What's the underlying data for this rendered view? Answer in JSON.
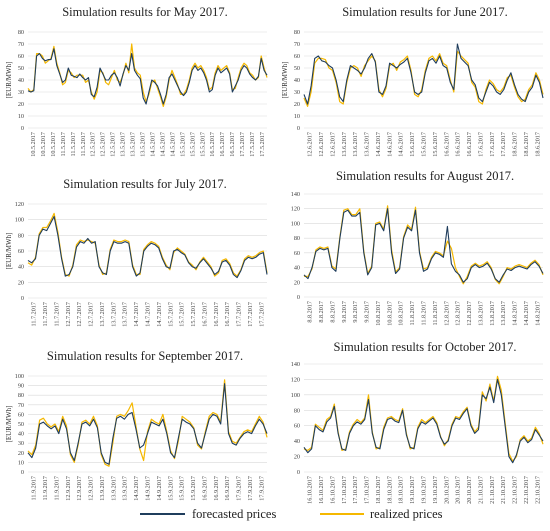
{
  "legend": {
    "forecasted_label": "forecasted prices",
    "realized_label": "realized prices"
  },
  "colors": {
    "forecasted": "#1f3d5c",
    "realized": "#f5b800"
  },
  "chart_data": [
    {
      "type": "line",
      "title": "Simulation results for May 2017.",
      "ylabel": "[EUR/MWh]",
      "ylim": [
        0,
        80
      ],
      "yticks": [
        0,
        10,
        20,
        30,
        40,
        50,
        60,
        70,
        80
      ],
      "xticks": [
        "10.5.2017",
        "10.5.2017",
        "10.5.2017",
        "11.5.2017",
        "11.5.2017",
        "11.5.2017",
        "12.5.2017",
        "12.5.2017",
        "12.5.2017",
        "13.5.2017",
        "13.5.2017",
        "13.5.2017",
        "14.5.2017",
        "14.5.2017",
        "14.5.2017",
        "15.5.2017",
        "15.5.2017",
        "15.5.2017",
        "16.5.2017",
        "16.5.2017",
        "16.5.2017",
        "17.5.2017",
        "17.5.2017",
        "17.5.2017"
      ],
      "series": [
        {
          "name": "forecasted prices",
          "values": [
            31,
            30,
            31,
            60,
            62,
            58,
            56,
            57,
            57,
            66,
            52,
            45,
            38,
            40,
            50,
            44,
            43,
            42,
            45,
            42,
            40,
            42,
            28,
            26,
            34,
            50,
            45,
            40,
            40,
            44,
            46,
            42,
            35,
            45,
            52,
            48,
            62,
            48,
            44,
            41,
            25,
            20,
            30,
            40,
            38,
            35,
            28,
            20,
            28,
            42,
            45,
            40,
            35,
            30,
            27,
            30,
            38,
            48,
            52,
            48,
            50,
            46,
            40,
            30,
            32,
            44,
            50,
            46,
            48,
            50,
            45,
            30,
            35,
            40,
            48,
            52,
            50,
            45,
            42,
            40,
            43,
            58,
            48,
            44
          ]
        },
        {
          "name": "realized prices",
          "values": [
            33,
            30,
            32,
            62,
            62,
            60,
            54,
            56,
            58,
            68,
            54,
            46,
            36,
            38,
            48,
            46,
            42,
            44,
            44,
            44,
            38,
            40,
            30,
            24,
            30,
            48,
            46,
            38,
            36,
            42,
            48,
            40,
            38,
            44,
            54,
            46,
            70,
            50,
            46,
            44,
            30,
            22,
            28,
            38,
            40,
            33,
            26,
            18,
            26,
            40,
            48,
            42,
            36,
            28,
            28,
            32,
            40,
            50,
            54,
            50,
            52,
            48,
            42,
            32,
            34,
            46,
            52,
            48,
            50,
            52,
            46,
            32,
            33,
            42,
            50,
            54,
            52,
            46,
            44,
            40,
            42,
            60,
            50,
            42
          ]
        }
      ]
    },
    {
      "type": "line",
      "title": "Simulation results for June 2017.",
      "ylabel": "[EUR/MWh]",
      "ylim": [
        0,
        80
      ],
      "yticks": [
        0,
        10,
        20,
        30,
        40,
        50,
        60,
        70,
        80
      ],
      "xticks": [
        "12.6.2017",
        "12.6.2017",
        "12.6.2017",
        "13.6.2017",
        "13.6.2017",
        "13.6.2017",
        "14.6.2017",
        "14.6.2017",
        "14.6.2017",
        "15.6.2017",
        "15.6.2017",
        "15.6.2017",
        "16.6.2017",
        "16.6.2017",
        "16.6.2017",
        "17.6.2017",
        "17.6.2017",
        "17.6.2017",
        "18.6.2017",
        "18.6.2017",
        "18.6.2017"
      ],
      "series": [
        {
          "name": "forecasted prices",
          "values": [
            28,
            20,
            35,
            58,
            60,
            56,
            55,
            52,
            50,
            40,
            26,
            22,
            40,
            52,
            50,
            48,
            45,
            50,
            58,
            62,
            55,
            30,
            28,
            35,
            54,
            52,
            50,
            53,
            55,
            58,
            46,
            30,
            28,
            30,
            46,
            56,
            58,
            54,
            60,
            52,
            50,
            38,
            32,
            70,
            58,
            55,
            52,
            40,
            36,
            25,
            22,
            30,
            38,
            35,
            30,
            28,
            32,
            40,
            46,
            36,
            28,
            24,
            22,
            30,
            34,
            44,
            38,
            25
          ]
        },
        {
          "name": "realized prices",
          "values": [
            25,
            18,
            30,
            54,
            58,
            58,
            57,
            50,
            48,
            38,
            22,
            20,
            38,
            50,
            52,
            50,
            43,
            52,
            56,
            60,
            56,
            32,
            26,
            33,
            52,
            54,
            48,
            55,
            57,
            60,
            48,
            28,
            26,
            32,
            48,
            58,
            60,
            56,
            62,
            54,
            52,
            40,
            30,
            64,
            60,
            57,
            54,
            38,
            34,
            22,
            20,
            32,
            40,
            37,
            32,
            30,
            34,
            42,
            44,
            34,
            26,
            22,
            24,
            32,
            36,
            46,
            40,
            28
          ]
        }
      ]
    },
    {
      "type": "line",
      "title": "Simulation results for July 2017.",
      "ylabel": "[EUR/MWh]",
      "ylim": [
        0,
        120
      ],
      "yticks": [
        0,
        20,
        40,
        60,
        80,
        100,
        120
      ],
      "xticks": [
        "11.7.2017",
        "11.7.2017",
        "11.7.2017",
        "12.7.2017",
        "12.7.2017",
        "12.7.2017",
        "13.7.2017",
        "13.7.2017",
        "13.7.2017",
        "14.7.2017",
        "14.7.2017",
        "14.7.2017",
        "15.7.2017",
        "15.7.2017",
        "15.7.2017",
        "16.7.2017",
        "16.7.2017",
        "16.7.2017",
        "17.7.2017",
        "17.7.2017",
        "17.7.2017"
      ],
      "series": [
        {
          "name": "forecasted prices",
          "values": [
            48,
            45,
            50,
            80,
            88,
            86,
            95,
            104,
            80,
            50,
            28,
            30,
            40,
            65,
            72,
            70,
            76,
            70,
            72,
            40,
            32,
            30,
            60,
            72,
            70,
            70,
            72,
            70,
            40,
            28,
            32,
            60,
            66,
            70,
            68,
            64,
            50,
            40,
            38,
            60,
            62,
            58,
            55,
            45,
            40,
            38,
            45,
            50,
            44,
            38,
            30,
            34,
            46,
            48,
            42,
            30,
            26,
            35,
            48,
            52,
            50,
            52,
            56,
            58,
            30
          ]
        },
        {
          "name": "realized prices",
          "values": [
            45,
            42,
            52,
            82,
            90,
            90,
            98,
            108,
            84,
            52,
            30,
            28,
            42,
            68,
            74,
            72,
            74,
            72,
            70,
            42,
            30,
            32,
            62,
            74,
            72,
            72,
            74,
            72,
            42,
            30,
            30,
            62,
            68,
            72,
            70,
            66,
            52,
            42,
            36,
            58,
            64,
            60,
            56,
            46,
            42,
            36,
            46,
            52,
            46,
            40,
            28,
            32,
            48,
            50,
            44,
            32,
            28,
            36,
            50,
            54,
            52,
            54,
            58,
            60,
            32
          ]
        }
      ]
    },
    {
      "type": "line",
      "title": "Simulation results for August 2017.",
      "ylabel": "",
      "ylim": [
        0,
        140
      ],
      "yticks": [
        0,
        20,
        40,
        60,
        80,
        100,
        120,
        140
      ],
      "xticks": [
        "8.8.2017",
        "8.8.2017",
        "8.8.2017",
        "9.8.2017",
        "9.8.2017",
        "9.8.2017",
        "10.8.2017",
        "10.8.2017",
        "10.8.2017",
        "11.8.2017",
        "11.8.2017",
        "11.8.2017",
        "12.8.2017",
        "12.8.2017",
        "12.8.2017",
        "13.8.2017",
        "13.8.2017",
        "13.8.2017",
        "14.8.2017",
        "14.8.2017",
        "14.8.2017"
      ],
      "series": [
        {
          "name": "forecasted prices",
          "values": [
            30,
            25,
            40,
            62,
            66,
            64,
            66,
            40,
            35,
            80,
            115,
            118,
            110,
            110,
            115,
            60,
            30,
            40,
            98,
            100,
            90,
            120,
            60,
            32,
            38,
            80,
            95,
            90,
            118,
            60,
            35,
            38,
            52,
            60,
            58,
            54,
            96,
            45,
            35,
            30,
            20,
            25,
            40,
            44,
            40,
            42,
            46,
            38,
            25,
            20,
            30,
            38,
            36,
            40,
            42,
            40,
            38,
            44,
            48,
            42,
            32
          ]
        },
        {
          "name": "realized prices",
          "values": [
            28,
            28,
            38,
            64,
            68,
            66,
            68,
            42,
            38,
            82,
            118,
            120,
            112,
            112,
            120,
            62,
            32,
            42,
            100,
            102,
            92,
            124,
            64,
            34,
            40,
            82,
            98,
            92,
            122,
            62,
            38,
            40,
            54,
            62,
            60,
            56,
            76,
            66,
            40,
            28,
            18,
            28,
            42,
            46,
            42,
            44,
            48,
            40,
            24,
            18,
            28,
            40,
            38,
            42,
            44,
            42,
            40,
            46,
            50,
            44,
            30
          ]
        }
      ]
    },
    {
      "type": "line",
      "title": "Simulation results for September 2017.",
      "ylabel": "[EUR/MWh]",
      "ylim": [
        0,
        100
      ],
      "yticks": [
        0,
        10,
        20,
        30,
        40,
        50,
        60,
        70,
        80,
        90,
        100
      ],
      "xticks": [
        "11.9.2017",
        "11.9.2017",
        "11.9.2017",
        "12.9.2017",
        "12.9.2017",
        "12.9.2017",
        "13.9.2017",
        "13.9.2017",
        "13.9.2017",
        "14.9.2017",
        "14.9.2017",
        "14.9.2017",
        "15.9.2017",
        "15.9.2017",
        "15.9.2017",
        "16.9.2017",
        "16.9.2017",
        "16.9.2017",
        "17.9.2017",
        "17.9.2017",
        "17.9.2017"
      ],
      "series": [
        {
          "name": "forecasted prices",
          "values": [
            20,
            15,
            25,
            50,
            52,
            48,
            45,
            48,
            40,
            55,
            45,
            20,
            12,
            30,
            50,
            52,
            48,
            55,
            46,
            20,
            10,
            8,
            35,
            56,
            58,
            55,
            60,
            62,
            45,
            25,
            28,
            40,
            52,
            50,
            48,
            55,
            40,
            20,
            15,
            35,
            55,
            52,
            50,
            45,
            30,
            25,
            40,
            55,
            60,
            58,
            50,
            92,
            40,
            30,
            28,
            35,
            40,
            42,
            40,
            48,
            55,
            50,
            40
          ]
        },
        {
          "name": "realized prices",
          "values": [
            22,
            18,
            28,
            54,
            56,
            50,
            47,
            50,
            42,
            58,
            48,
            18,
            10,
            28,
            52,
            54,
            50,
            58,
            48,
            18,
            8,
            6,
            30,
            58,
            60,
            58,
            64,
            72,
            48,
            24,
            12,
            42,
            55,
            52,
            50,
            60,
            42,
            22,
            14,
            32,
            58,
            55,
            52,
            46,
            28,
            24,
            42,
            58,
            62,
            60,
            52,
            96,
            42,
            32,
            30,
            36,
            42,
            44,
            42,
            50,
            58,
            52,
            36
          ]
        }
      ]
    },
    {
      "type": "line",
      "title": "Simulation results for October 2017.",
      "ylabel": "",
      "ylim": [
        0,
        140
      ],
      "yticks": [
        0,
        20,
        40,
        60,
        80,
        100,
        120,
        140
      ],
      "xticks": [
        "16.10.2017",
        "16.10.2017",
        "16.10.2017",
        "17.10.2017",
        "17.10.2017",
        "17.10.2017",
        "18.10.2017",
        "18.10.2017",
        "18.10.2017",
        "19.10.2017",
        "19.10.2017",
        "19.10.2017",
        "20.10.2017",
        "20.10.2017",
        "20.10.2017",
        "21.10.2017",
        "21.10.2017",
        "21.10.2017",
        "22.10.2017",
        "22.10.2017",
        "22.10.2017"
      ],
      "series": [
        {
          "name": "forecasted prices",
          "values": [
            32,
            25,
            30,
            60,
            55,
            52,
            65,
            70,
            85,
            50,
            30,
            28,
            50,
            60,
            65,
            62,
            68,
            94,
            50,
            32,
            30,
            55,
            68,
            70,
            66,
            64,
            80,
            48,
            32,
            30,
            56,
            65,
            62,
            66,
            70,
            62,
            45,
            36,
            40,
            60,
            70,
            68,
            76,
            82,
            60,
            50,
            55,
            100,
            95,
            110,
            90,
            120,
            100,
            60,
            20,
            12,
            22,
            40,
            45,
            38,
            42,
            55,
            48,
            40
          ]
        },
        {
          "name": "realized prices",
          "values": [
            30,
            28,
            32,
            62,
            58,
            54,
            68,
            72,
            88,
            52,
            28,
            30,
            52,
            62,
            68,
            64,
            70,
            100,
            52,
            30,
            32,
            58,
            70,
            72,
            68,
            66,
            82,
            50,
            30,
            32,
            58,
            68,
            64,
            68,
            72,
            64,
            46,
            34,
            42,
            62,
            72,
            70,
            78,
            84,
            62,
            52,
            58,
            104,
            92,
            114,
            92,
            124,
            106,
            64,
            24,
            14,
            20,
            42,
            47,
            40,
            44,
            58,
            50,
            36
          ]
        }
      ]
    }
  ]
}
